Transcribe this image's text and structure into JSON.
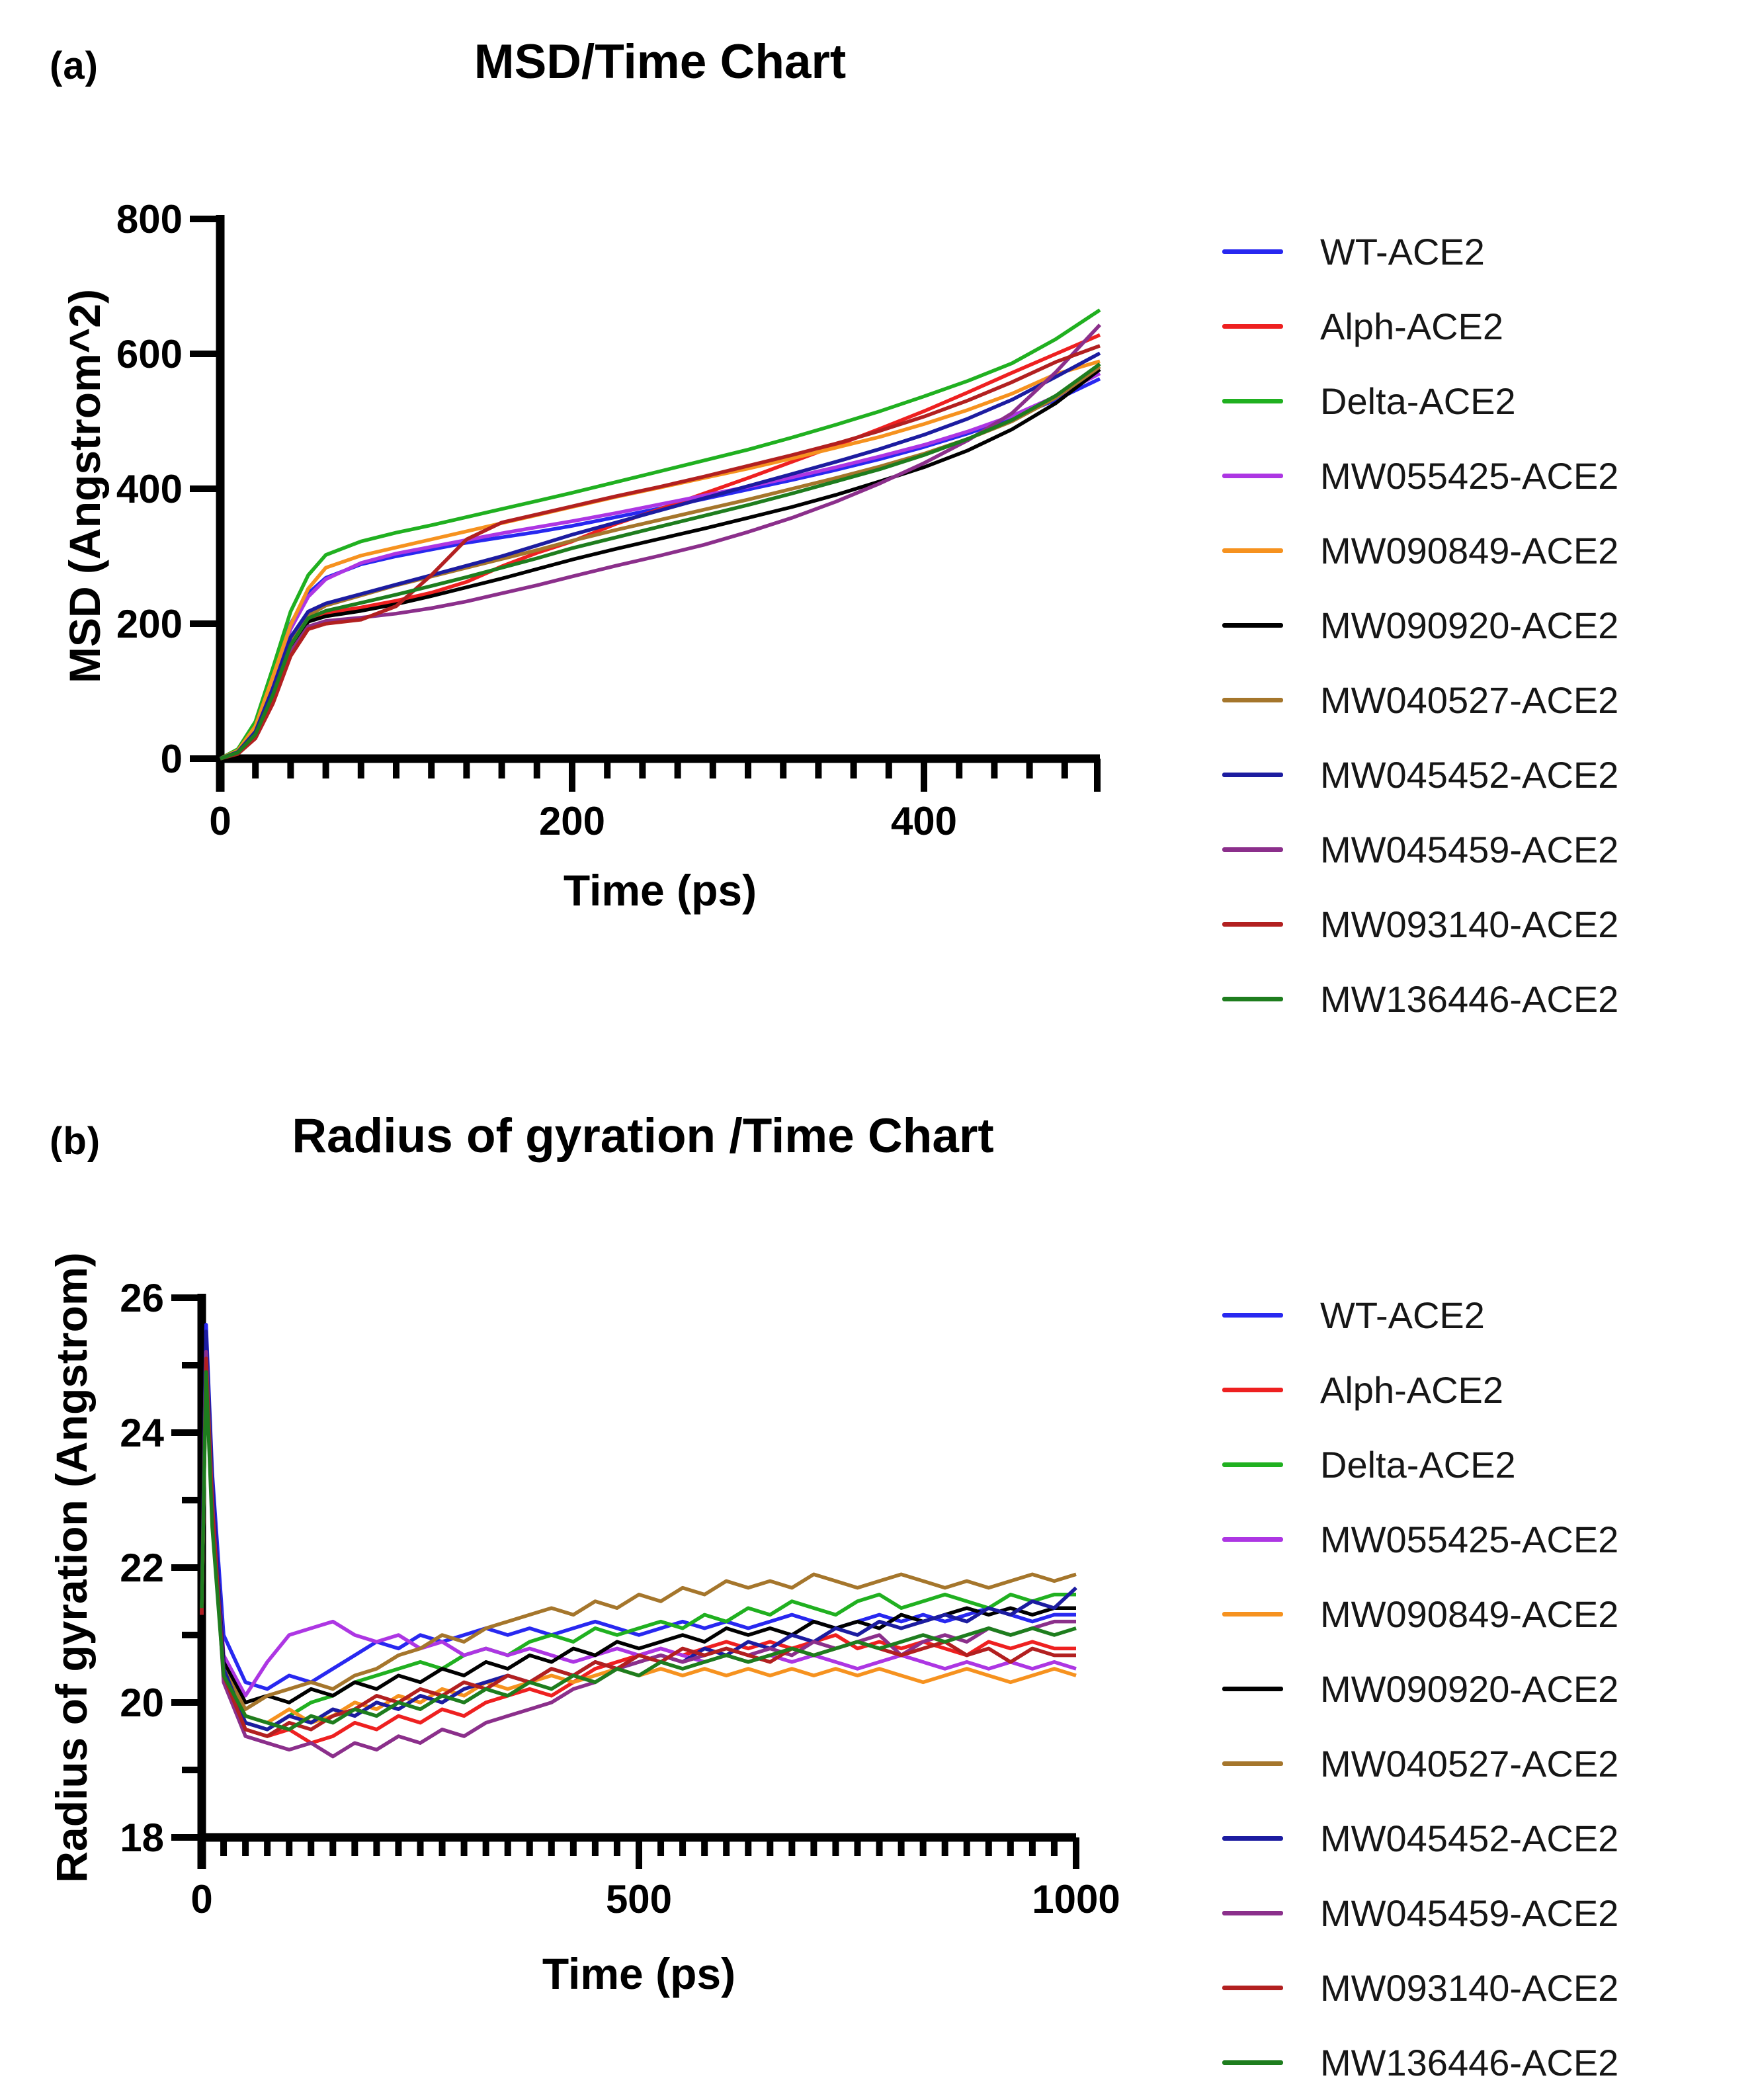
{
  "panel_a": {
    "label": "(a)",
    "title": "MSD/Time Chart",
    "x_title": "Time (ps)",
    "y_title": "MSD (Angstrom^2)"
  },
  "panel_b": {
    "label": "(b)",
    "title": "Radius of gyration /Time Chart",
    "x_title": "Time (ps)",
    "y_title": "Radius of gyration (Angstrom)"
  },
  "chart_data": [
    {
      "id": "a",
      "type": "line",
      "title": "MSD/Time Chart",
      "xlabel": "Time (ps)",
      "ylabel": "MSD (Angstrom^2)",
      "xlim": [
        0,
        500
      ],
      "ylim": [
        0,
        800
      ],
      "x_ticks": [
        0,
        200,
        400
      ],
      "x_end_tick": 500,
      "x_minor_step": 20,
      "y_ticks": [
        0,
        200,
        400,
        600,
        800
      ],
      "y_minor_step": null,
      "grid": false,
      "legend_position": "right",
      "x": [
        0,
        10,
        20,
        30,
        40,
        50,
        60,
        80,
        100,
        120,
        140,
        160,
        180,
        200,
        225,
        250,
        275,
        300,
        325,
        350,
        375,
        400,
        425,
        450,
        475,
        500
      ],
      "series": [
        {
          "name": "WT-ACE2",
          "color": "#2828f0",
          "values": [
            0,
            12,
            50,
            125,
            200,
            245,
            268,
            288,
            300,
            310,
            320,
            328,
            336,
            345,
            358,
            371,
            385,
            399,
            413,
            428,
            444,
            462,
            482,
            505,
            532,
            563
          ]
        },
        {
          "name": "Alph-ACE2",
          "color": "#ee2020",
          "values": [
            0,
            9,
            38,
            100,
            172,
            208,
            216,
            224,
            234,
            246,
            262,
            285,
            305,
            322,
            348,
            370,
            393,
            416,
            440,
            464,
            489,
            515,
            543,
            572,
            600,
            628
          ]
        },
        {
          "name": "Delta-ACE2",
          "color": "#20b020",
          "values": [
            0,
            14,
            55,
            135,
            218,
            272,
            302,
            322,
            335,
            346,
            358,
            370,
            382,
            394,
            410,
            426,
            442,
            458,
            476,
            495,
            515,
            537,
            560,
            586,
            622,
            665
          ]
        },
        {
          "name": "MW055425-ACE2",
          "color": "#ad36e3",
          "values": [
            0,
            11,
            45,
            118,
            192,
            240,
            266,
            290,
            304,
            314,
            324,
            334,
            343,
            352,
            364,
            377,
            390,
            403,
            417,
            432,
            448,
            465,
            485,
            508,
            537,
            571
          ]
        },
        {
          "name": "MW090849-ACE2",
          "color": "#f6921f",
          "values": [
            0,
            12,
            48,
            122,
            198,
            252,
            283,
            301,
            313,
            325,
            337,
            349,
            361,
            373,
            388,
            402,
            416,
            430,
            445,
            461,
            477,
            496,
            517,
            541,
            570,
            589
          ]
        },
        {
          "name": "MW090920-ACE2",
          "color": "#000000",
          "values": [
            0,
            8,
            34,
            92,
            165,
            203,
            211,
            219,
            229,
            241,
            254,
            267,
            281,
            295,
            311,
            326,
            341,
            357,
            373,
            391,
            411,
            432,
            457,
            488,
            527,
            577
          ]
        },
        {
          "name": "MW040527-ACE2",
          "color": "#a5762c",
          "values": [
            0,
            9,
            37,
            98,
            172,
            212,
            227,
            242,
            257,
            270,
            283,
            296,
            309,
            323,
            339,
            354,
            369,
            384,
            400,
            416,
            433,
            452,
            474,
            500,
            535,
            581
          ]
        },
        {
          "name": "MW045452-ACE2",
          "color": "#1c1ca0",
          "values": [
            0,
            10,
            40,
            105,
            180,
            218,
            230,
            244,
            258,
            272,
            286,
            300,
            316,
            332,
            350,
            368,
            386,
            404,
            422,
            440,
            459,
            480,
            504,
            532,
            566,
            601
          ]
        },
        {
          "name": "MW045459-ACE2",
          "color": "#8b2f8b",
          "values": [
            0,
            8,
            33,
            88,
            158,
            196,
            204,
            209,
            215,
            223,
            233,
            245,
            257,
            270,
            286,
            301,
            317,
            336,
            357,
            381,
            408,
            438,
            472,
            512,
            573,
            643
          ]
        },
        {
          "name": "MW093140-ACE2",
          "color": "#b22020",
          "values": [
            0,
            7,
            30,
            82,
            152,
            192,
            200,
            206,
            226,
            272,
            325,
            350,
            362,
            374,
            389,
            403,
            418,
            434,
            450,
            467,
            486,
            507,
            531,
            558,
            588,
            612
          ]
        },
        {
          "name": "MW136446-ACE2",
          "color": "#1e7d1e",
          "values": [
            0,
            9,
            36,
            95,
            168,
            208,
            219,
            231,
            243,
            256,
            269,
            283,
            297,
            312,
            328,
            344,
            360,
            376,
            393,
            411,
            429,
            450,
            474,
            502,
            538,
            585
          ]
        }
      ]
    },
    {
      "id": "b",
      "type": "line",
      "title": "Radius of gyration /Time Chart",
      "xlabel": "Time (ps)",
      "ylabel": "Radius of gyration (Angstrom)",
      "xlim": [
        0,
        1000
      ],
      "ylim": [
        18,
        26
      ],
      "x_ticks": [
        0,
        500,
        1000
      ],
      "x_end_tick": 1000,
      "x_minor_step": 25,
      "y_ticks": [
        18,
        20,
        22,
        24,
        26
      ],
      "y_minor_step": 1,
      "grid": false,
      "legend_position": "right",
      "x": [
        0,
        5,
        12,
        25,
        50,
        75,
        100,
        125,
        150,
        175,
        200,
        225,
        250,
        275,
        300,
        325,
        350,
        375,
        400,
        425,
        450,
        475,
        500,
        525,
        550,
        575,
        600,
        625,
        650,
        675,
        700,
        725,
        750,
        775,
        800,
        825,
        850,
        875,
        900,
        925,
        950,
        975,
        1000
      ],
      "series": [
        {
          "name": "WT-ACE2",
          "color": "#2828f0",
          "values": [
            21.4,
            25.6,
            23.4,
            21.0,
            20.3,
            20.2,
            20.4,
            20.3,
            20.5,
            20.7,
            20.9,
            20.8,
            21.0,
            20.9,
            21.0,
            21.1,
            21.0,
            21.1,
            21.0,
            21.1,
            21.2,
            21.1,
            21.0,
            21.1,
            21.2,
            21.1,
            21.2,
            21.1,
            21.2,
            21.3,
            21.2,
            21.1,
            21.2,
            21.3,
            21.2,
            21.3,
            21.2,
            21.3,
            21.4,
            21.3,
            21.2,
            21.3,
            21.3
          ]
        },
        {
          "name": "Alph-ACE2",
          "color": "#ee2020",
          "values": [
            21.3,
            25.2,
            23.0,
            20.5,
            19.6,
            19.5,
            19.6,
            19.4,
            19.5,
            19.7,
            19.6,
            19.8,
            19.7,
            19.9,
            19.8,
            20.0,
            20.1,
            20.2,
            20.1,
            20.3,
            20.5,
            20.6,
            20.7,
            20.8,
            20.7,
            20.8,
            20.9,
            20.8,
            20.9,
            20.8,
            20.9,
            21.0,
            20.8,
            20.9,
            20.8,
            20.9,
            20.8,
            20.7,
            20.9,
            20.8,
            20.9,
            20.8,
            20.8
          ]
        },
        {
          "name": "Delta-ACE2",
          "color": "#20b020",
          "values": [
            21.4,
            25.0,
            22.8,
            20.4,
            19.7,
            19.6,
            19.8,
            20.0,
            20.1,
            20.3,
            20.4,
            20.5,
            20.6,
            20.5,
            20.7,
            20.8,
            20.7,
            20.9,
            21.0,
            20.9,
            21.1,
            21.0,
            21.1,
            21.2,
            21.1,
            21.3,
            21.2,
            21.4,
            21.3,
            21.5,
            21.4,
            21.3,
            21.5,
            21.6,
            21.4,
            21.5,
            21.6,
            21.5,
            21.4,
            21.6,
            21.5,
            21.6,
            21.6
          ]
        },
        {
          "name": "MW055425-ACE2",
          "color": "#ad36e3",
          "values": [
            21.4,
            25.3,
            23.1,
            20.7,
            20.1,
            20.6,
            21.0,
            21.1,
            21.2,
            21.0,
            20.9,
            21.0,
            20.8,
            20.9,
            20.7,
            20.8,
            20.7,
            20.8,
            20.7,
            20.6,
            20.7,
            20.8,
            20.7,
            20.8,
            20.7,
            20.6,
            20.7,
            20.6,
            20.7,
            20.6,
            20.7,
            20.6,
            20.5,
            20.6,
            20.7,
            20.6,
            20.5,
            20.6,
            20.5,
            20.6,
            20.5,
            20.6,
            20.5
          ]
        },
        {
          "name": "MW090849-ACE2",
          "color": "#f6921f",
          "values": [
            21.3,
            25.1,
            22.9,
            20.5,
            19.8,
            19.7,
            19.9,
            19.7,
            19.8,
            20.0,
            19.9,
            20.1,
            20.0,
            20.2,
            20.1,
            20.3,
            20.2,
            20.3,
            20.4,
            20.3,
            20.4,
            20.5,
            20.4,
            20.5,
            20.4,
            20.5,
            20.4,
            20.5,
            20.4,
            20.5,
            20.4,
            20.5,
            20.4,
            20.5,
            20.4,
            20.3,
            20.4,
            20.5,
            20.4,
            20.3,
            20.4,
            20.5,
            20.4
          ]
        },
        {
          "name": "MW090920-ACE2",
          "color": "#000000",
          "values": [
            21.4,
            25.4,
            23.2,
            20.6,
            20.0,
            20.1,
            20.0,
            20.2,
            20.1,
            20.3,
            20.2,
            20.4,
            20.3,
            20.5,
            20.4,
            20.6,
            20.5,
            20.7,
            20.6,
            20.8,
            20.7,
            20.9,
            20.8,
            20.9,
            21.0,
            20.9,
            21.1,
            21.0,
            21.1,
            21.0,
            21.2,
            21.1,
            21.2,
            21.1,
            21.3,
            21.2,
            21.3,
            21.4,
            21.3,
            21.4,
            21.3,
            21.4,
            21.4
          ]
        },
        {
          "name": "MW040527-ACE2",
          "color": "#a5762c",
          "values": [
            21.4,
            25.0,
            22.7,
            20.5,
            19.9,
            20.1,
            20.2,
            20.3,
            20.2,
            20.4,
            20.5,
            20.7,
            20.8,
            21.0,
            20.9,
            21.1,
            21.2,
            21.3,
            21.4,
            21.3,
            21.5,
            21.4,
            21.6,
            21.5,
            21.7,
            21.6,
            21.8,
            21.7,
            21.8,
            21.7,
            21.9,
            21.8,
            21.7,
            21.8,
            21.9,
            21.8,
            21.7,
            21.8,
            21.7,
            21.8,
            21.9,
            21.8,
            21.9
          ]
        },
        {
          "name": "MW045452-ACE2",
          "color": "#1c1ca0",
          "values": [
            21.3,
            25.5,
            23.3,
            20.5,
            19.7,
            19.6,
            19.8,
            19.7,
            19.9,
            19.8,
            20.0,
            19.9,
            20.1,
            20.0,
            20.2,
            20.3,
            20.4,
            20.3,
            20.5,
            20.4,
            20.6,
            20.5,
            20.6,
            20.7,
            20.6,
            20.8,
            20.7,
            20.9,
            20.8,
            21.0,
            20.9,
            21.1,
            21.0,
            21.2,
            21.1,
            21.2,
            21.3,
            21.2,
            21.4,
            21.3,
            21.5,
            21.4,
            21.7
          ]
        },
        {
          "name": "MW045459-ACE2",
          "color": "#8b2f8b",
          "values": [
            21.3,
            25.2,
            23.0,
            20.3,
            19.5,
            19.4,
            19.3,
            19.4,
            19.2,
            19.4,
            19.3,
            19.5,
            19.4,
            19.6,
            19.5,
            19.7,
            19.8,
            19.9,
            20.0,
            20.2,
            20.3,
            20.5,
            20.6,
            20.7,
            20.6,
            20.7,
            20.8,
            20.7,
            20.8,
            20.7,
            20.9,
            20.8,
            20.9,
            21.0,
            20.7,
            20.9,
            21.0,
            20.9,
            21.1,
            21.0,
            21.1,
            21.2,
            21.2
          ]
        },
        {
          "name": "MW093140-ACE2",
          "color": "#b22020",
          "values": [
            21.3,
            25.1,
            22.9,
            20.4,
            19.6,
            19.5,
            19.7,
            19.6,
            19.8,
            19.9,
            20.1,
            20.0,
            20.2,
            20.1,
            20.3,
            20.2,
            20.4,
            20.3,
            20.5,
            20.4,
            20.6,
            20.5,
            20.7,
            20.6,
            20.8,
            20.7,
            20.8,
            20.7,
            20.6,
            20.8,
            20.7,
            20.8,
            20.9,
            20.8,
            20.7,
            20.8,
            20.9,
            20.7,
            20.8,
            20.6,
            20.8,
            20.7,
            20.7
          ]
        },
        {
          "name": "MW136446-ACE2",
          "color": "#1e7d1e",
          "values": [
            21.4,
            24.9,
            22.6,
            20.4,
            19.8,
            19.7,
            19.6,
            19.8,
            19.7,
            19.9,
            19.8,
            20.0,
            19.9,
            20.1,
            20.0,
            20.2,
            20.1,
            20.3,
            20.2,
            20.4,
            20.3,
            20.5,
            20.4,
            20.6,
            20.5,
            20.6,
            20.7,
            20.6,
            20.7,
            20.8,
            20.7,
            20.8,
            20.9,
            20.8,
            20.9,
            21.0,
            20.9,
            21.0,
            21.1,
            21.0,
            21.1,
            21.0,
            21.1
          ]
        }
      ]
    }
  ]
}
